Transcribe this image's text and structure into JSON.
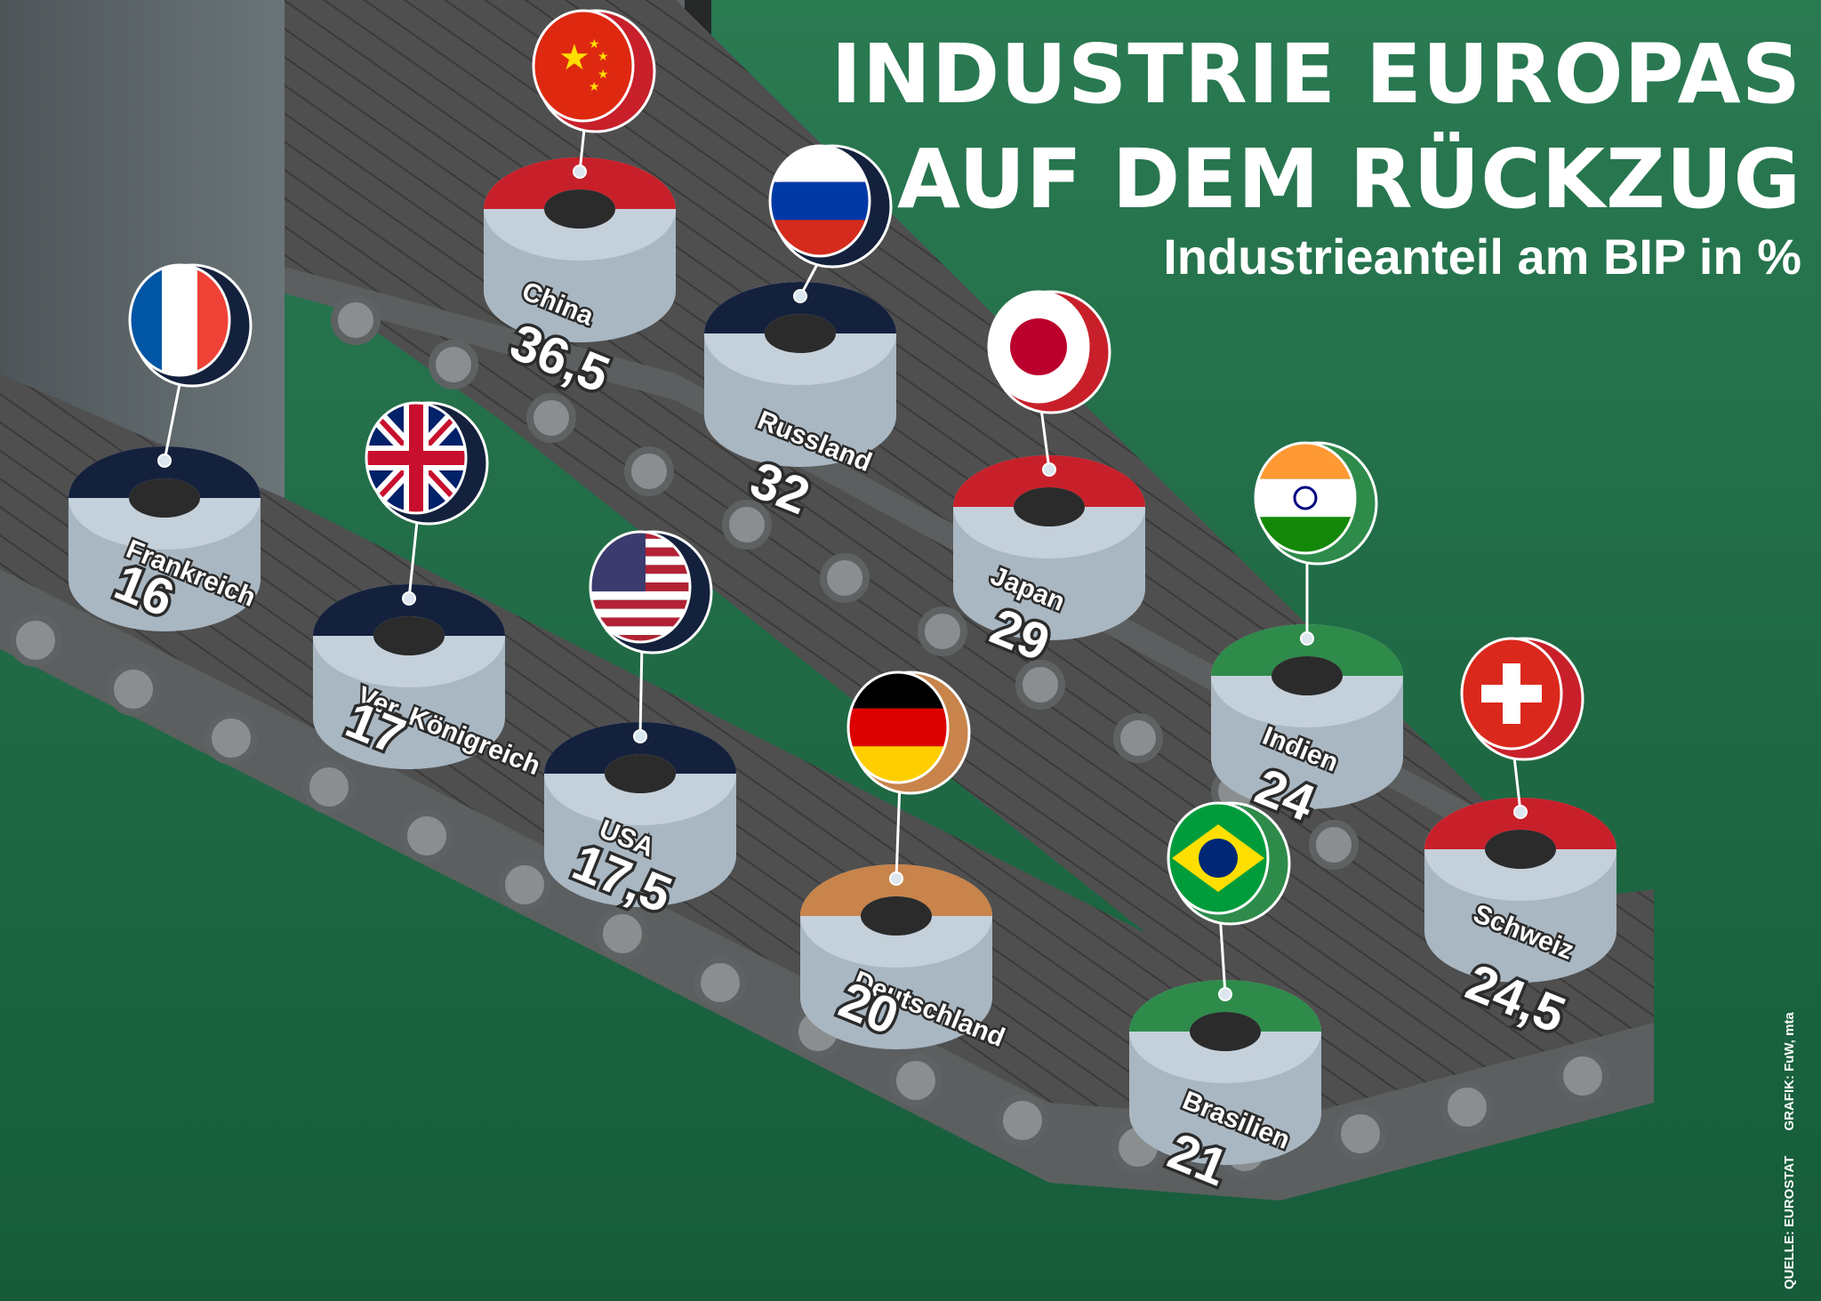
{
  "header": {
    "title_line1": "INDUSTRIE EUROPAS",
    "title_line2": "AUF DEM RÜCKZUG",
    "subtitle": "Industrieanteil am BIP in %"
  },
  "footer": {
    "source": "QUELLE: EUROSTAT",
    "graphic": "GRAFIK: FuW, mta"
  },
  "colors": {
    "background": "#1e6b45",
    "belt": "#4a4a4a",
    "ring": "#c4d0da"
  },
  "chart_data": {
    "type": "bar",
    "title": "INDUSTRIE EUROPAS AUF DEM RÜCKZUG",
    "subtitle": "Industrieanteil am BIP in %",
    "unit": "%",
    "categories": [
      "China",
      "Russland",
      "Japan",
      "Indien",
      "Schweiz",
      "Brasilien",
      "Deutschland",
      "USA",
      "Ver. Königreich",
      "Frankreich"
    ],
    "values": [
      36.5,
      32,
      29,
      24,
      24.5,
      21,
      20,
      17.5,
      17,
      16
    ],
    "value_labels": [
      "36,5",
      "32",
      "29",
      "24",
      "24,5",
      "21",
      "20",
      "17,5",
      "17",
      "16"
    ],
    "flags": [
      "china-flag-icon",
      "russia-flag-icon",
      "japan-flag-icon",
      "india-flag-icon",
      "switzerland-flag-icon",
      "brazil-flag-icon",
      "germany-flag-icon",
      "usa-flag-icon",
      "uk-flag-icon",
      "france-flag-icon"
    ],
    "ring_colors": [
      "#c8202a",
      "#14213d",
      "#c8202a",
      "#2e8b4a",
      "#c8202a",
      "#2e8b4a",
      "#c8844a",
      "#14213d",
      "#14213d",
      "#14213d"
    ]
  }
}
